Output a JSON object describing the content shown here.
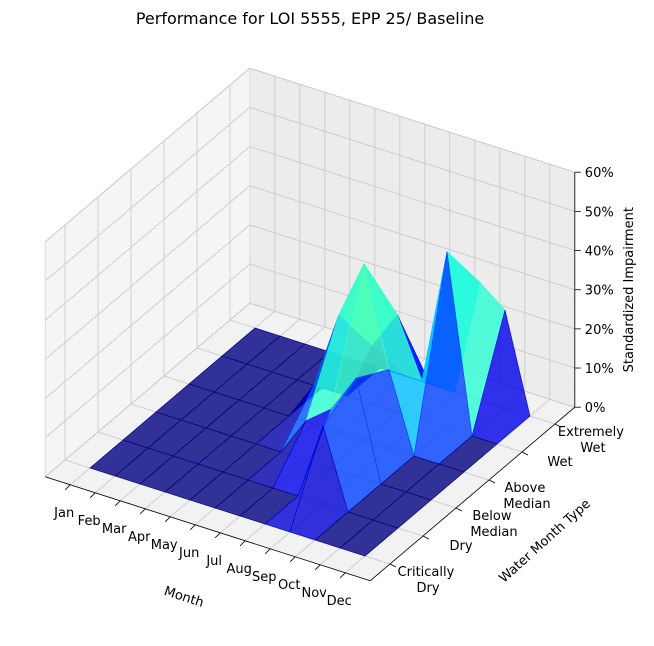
{
  "chart_data": {
    "type": "surface3d",
    "title": "Performance for LOI 5555, EPP 25/ Baseline",
    "x_label": "Month",
    "y_label": "Water Month Type",
    "z_label": "Standardized Impairment",
    "x_categories": [
      "Jan",
      "Feb",
      "Mar",
      "Apr",
      "May",
      "Jun",
      "Jul",
      "Aug",
      "Sep",
      "Oct",
      "Nov",
      "Dec"
    ],
    "y_categories": [
      "Critically Dry",
      "Dry",
      "Below Median",
      "Above Median",
      "Wet",
      "Extremely Wet"
    ],
    "z": [
      [
        0,
        0,
        0,
        0,
        0,
        0,
        0,
        0,
        0,
        0,
        0,
        0
      ],
      [
        0,
        0,
        0,
        0,
        0,
        0,
        0,
        0,
        20,
        0,
        0,
        0
      ],
      [
        0,
        0,
        0,
        0,
        0,
        0,
        10,
        15,
        25,
        0,
        0,
        0
      ],
      [
        0,
        0,
        0,
        0,
        0,
        10,
        30,
        45,
        20,
        0,
        0,
        0
      ],
      [
        0,
        0,
        0,
        0,
        0,
        0,
        15,
        25,
        10,
        45,
        0,
        0
      ],
      [
        0,
        0,
        0,
        0,
        0,
        0,
        0,
        0,
        0,
        30,
        25,
        0
      ]
    ],
    "zlim": [
      0,
      60
    ],
    "zticks": [
      {
        "value": 0,
        "label": "0%"
      },
      {
        "value": 10,
        "label": "10%"
      },
      {
        "value": 20,
        "label": "20%"
      },
      {
        "value": 30,
        "label": "30%"
      },
      {
        "value": 40,
        "label": "40%"
      },
      {
        "value": 50,
        "label": "50%"
      },
      {
        "value": 60,
        "label": "60%"
      }
    ],
    "colormap": "jet",
    "grid": true
  }
}
